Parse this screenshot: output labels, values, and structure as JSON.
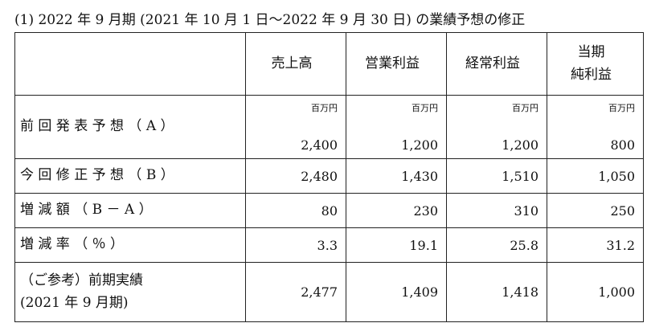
{
  "title": "(1) 2022 年 9 月期 (2021 年 10 月 1 日～2022 年 9 月 30 日) の業績予想の修正",
  "table": {
    "header": [
      [
        "売上高"
      ],
      [
        "営業利益"
      ],
      [
        "経常利益"
      ],
      [
        "当期",
        "純利益"
      ]
    ],
    "rows": [
      {
        "label": [
          "前 回 発 表 予 想 （ A ）"
        ],
        "units": [
          "百万円",
          "百万円",
          "百万円",
          "百万円"
        ],
        "values": [
          "2,400",
          "1,200",
          "1,200",
          "800"
        ]
      },
      {
        "label": [
          "今 回 修 正 予 想 （ B ）"
        ],
        "values": [
          "2,480",
          "1,430",
          "1,510",
          "1,050"
        ]
      },
      {
        "label": [
          "増 減 額 （ B － A ）"
        ],
        "values": [
          "80",
          "230",
          "310",
          "250"
        ]
      },
      {
        "label": [
          "増 減 率 （ ％ ）"
        ],
        "values": [
          "3.3",
          "19.1",
          "25.8",
          "31.2"
        ]
      },
      {
        "label": [
          "（ご参考）前期実績",
          "(2021 年 9 月期)"
        ],
        "values": [
          "2,477",
          "1,409",
          "1,418",
          "1,000"
        ]
      }
    ]
  }
}
